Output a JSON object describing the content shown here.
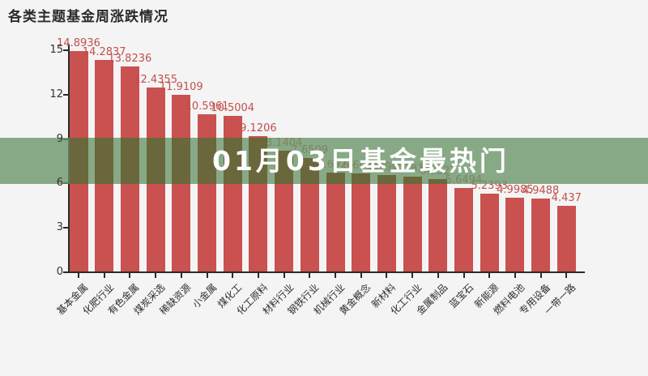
{
  "page": {
    "background_color": "#f4f4f4",
    "title": "各类主题基金周涨跌情况"
  },
  "overlay_banner": {
    "text": "01月03日基金最热门",
    "background_color": "#8cab8a",
    "bar_tint_color": "#6a673c",
    "text_color": "#ffffff"
  },
  "chart_data": {
    "type": "bar",
    "title": "各类主题基金周涨跌情况",
    "xlabel": "",
    "ylabel": "",
    "ylim": [
      0,
      15
    ],
    "yticks": [
      0,
      3,
      6,
      9,
      12,
      15
    ],
    "grid": false,
    "legend": "none",
    "bar_color": "#c9514f",
    "value_label_color": "#c0504d",
    "categories": [
      "基本金属",
      "化肥行业",
      "有色金属",
      "煤炭采选",
      "稀缺资源",
      "小金属",
      "煤化工",
      "化工原料",
      "材料行业",
      "钢铁行业",
      "机械行业",
      "黄金概念",
      "新材料",
      "化工行业",
      "金属制品",
      "蓝宝石",
      "新能源",
      "燃料电池",
      "专用设备",
      "一带一路"
    ],
    "values": [
      14.8936,
      14.2837,
      13.8236,
      12.4355,
      11.9109,
      10.5961,
      10.5004,
      9.1206,
      8.1404,
      7.6509,
      6.6924,
      6.6018,
      6.4905,
      6.3816,
      6.2327,
      5.6494,
      5.2393,
      4.9985,
      4.9488,
      4.437
    ],
    "value_labels": [
      "14.8936",
      "14.2837",
      "13.8236",
      "12.4355",
      "11.9109",
      "10.5961",
      "10.5004",
      "9.1206",
      "8.1404",
      "7.6509",
      "6.6924",
      "6.6018",
      "6.4905",
      "6.3816",
      "6.2327",
      "5.6494",
      "5.2393",
      "4.9985",
      "4.9488",
      "4.437"
    ]
  }
}
